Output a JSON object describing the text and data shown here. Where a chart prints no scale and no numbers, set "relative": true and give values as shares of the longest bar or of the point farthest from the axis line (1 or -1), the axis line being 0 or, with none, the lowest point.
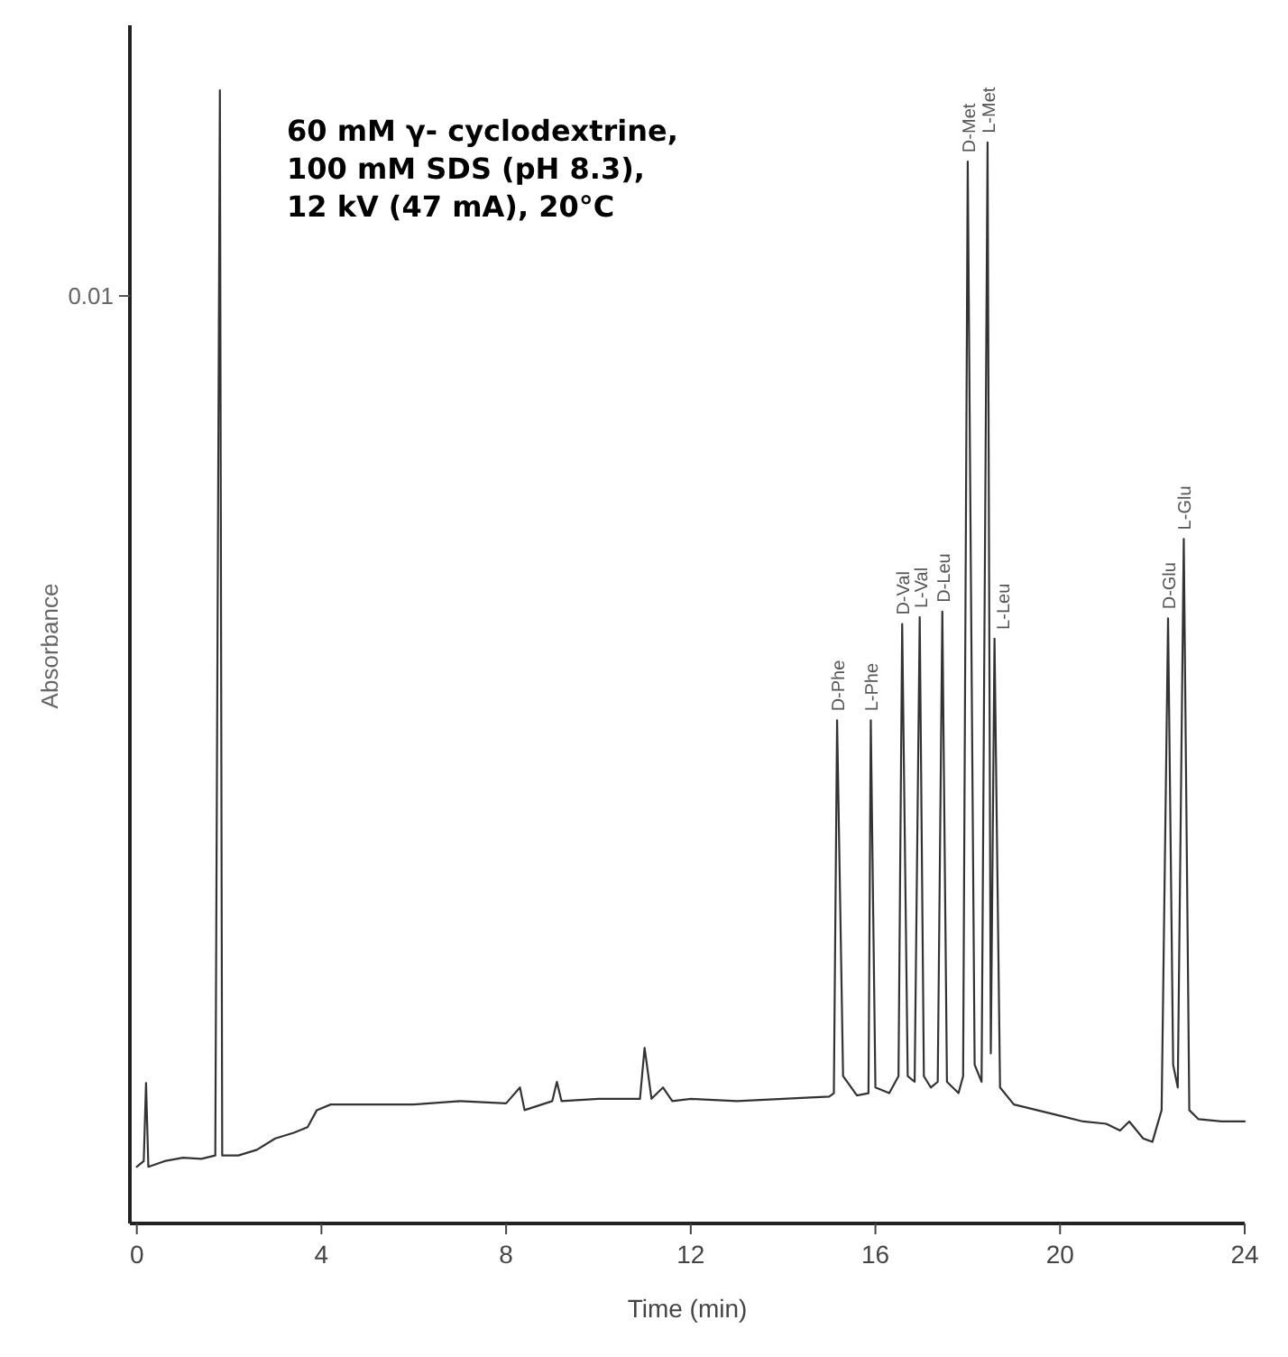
{
  "chart_data": {
    "type": "line",
    "relative": true,
    "xlabel": "Time (min)",
    "ylabel": "Absorbance",
    "xlim": [
      -0.15,
      24
    ],
    "xticks": [
      0,
      4,
      8,
      12,
      16,
      20,
      24
    ],
    "line_style": "solid",
    "marker": "none",
    "series": [
      {
        "color": "#333333",
        "x": [
          0,
          0.15,
          0.2,
          0.25,
          0.6,
          1.0,
          1.4,
          1.7,
          1.8,
          1.85,
          2.2,
          2.6,
          3.0,
          3.4,
          3.7,
          3.9,
          4.2,
          5,
          6,
          7,
          8,
          8.3,
          8.4,
          9,
          9.1,
          9.2,
          10,
          10.9,
          11.0,
          11.15,
          11.4,
          11.6,
          12,
          13,
          14,
          15,
          15.1,
          15.17,
          15.3,
          15.6,
          15.85,
          15.9,
          16.0,
          16.3,
          16.5,
          16.58,
          16.7,
          16.85,
          16.96,
          17.05,
          17.2,
          17.35,
          17.45,
          17.55,
          17.8,
          17.9,
          18.0,
          18.15,
          18.3,
          18.43,
          18.5,
          18.58,
          18.7,
          19,
          19.5,
          20,
          20.5,
          21,
          21.3,
          21.5,
          21.8,
          22.0,
          22.2,
          22.34,
          22.45,
          22.55,
          22.68,
          22.8,
          23,
          23.5,
          24
        ],
        "values": [
          0.05,
          0.055,
          0.124,
          0.05,
          0.055,
          0.058,
          0.057,
          0.06,
          1.0,
          0.06,
          0.06,
          0.065,
          0.075,
          0.08,
          0.085,
          0.1,
          0.105,
          0.105,
          0.105,
          0.108,
          0.106,
          0.12,
          0.1,
          0.108,
          0.125,
          0.108,
          0.11,
          0.11,
          0.155,
          0.11,
          0.12,
          0.108,
          0.11,
          0.108,
          0.11,
          0.112,
          0.115,
          0.444,
          0.13,
          0.113,
          0.115,
          0.444,
          0.12,
          0.115,
          0.13,
          0.529,
          0.13,
          0.125,
          0.535,
          0.13,
          0.12,
          0.125,
          0.54,
          0.125,
          0.115,
          0.13,
          0.937,
          0.14,
          0.125,
          0.954,
          0.15,
          0.516,
          0.12,
          0.105,
          0.1,
          0.095,
          0.09,
          0.088,
          0.082,
          0.09,
          0.075,
          0.072,
          0.1,
          0.534,
          0.14,
          0.12,
          0.604,
          0.1,
          0.092,
          0.09,
          0.09
        ]
      }
    ],
    "annotations": [
      "60 mM γ- cyclodextrine,\n100 mM SDS (pH 8.3),\n12 kV (47 mA), 20°C",
      "0.01",
      {
        "text": "D-Phe",
        "x": 15.17,
        "y": 0.444
      },
      {
        "text": "L-Phe",
        "x": 15.9,
        "y": 0.444
      },
      {
        "text": "D-Val",
        "x": 16.58,
        "y": 0.529
      },
      {
        "text": "L-Val",
        "x": 16.96,
        "y": 0.535
      },
      {
        "text": "D-Leu",
        "x": 17.45,
        "y": 0.54
      },
      {
        "text": "D-Met",
        "x": 18.0,
        "y": 0.937
      },
      {
        "text": "L-Met",
        "x": 18.43,
        "y": 0.954
      },
      {
        "text": "L-Leu",
        "x": 18.58,
        "y": 0.516
      },
      {
        "text": "D-Glu",
        "x": 22.34,
        "y": 0.534
      },
      {
        "text": "L-Glu",
        "x": 22.68,
        "y": 0.604
      }
    ]
  }
}
